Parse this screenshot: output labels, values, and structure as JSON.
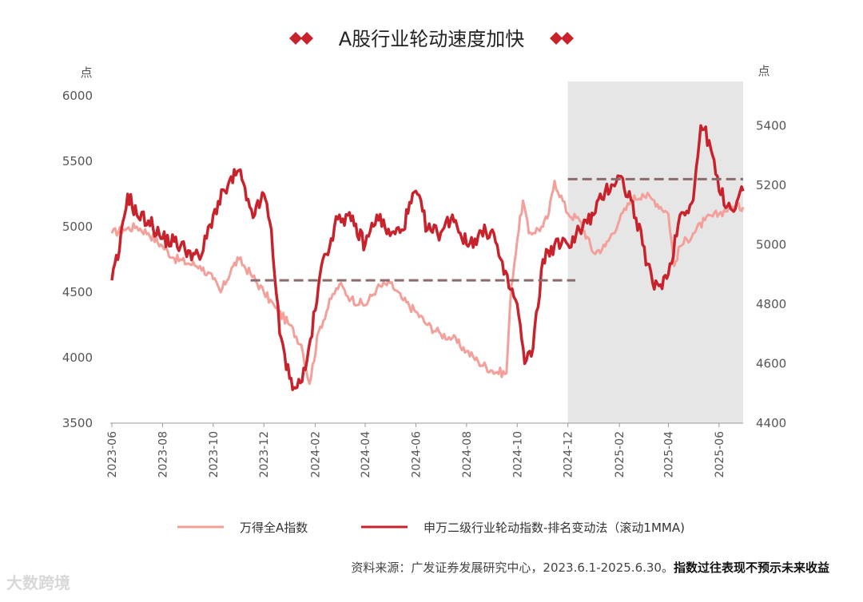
{
  "chart_data": {
    "type": "line",
    "title": "A股行业轮动速度加快",
    "left_axis": {
      "unit": "点",
      "ticks": [
        3500,
        4000,
        4500,
        5000,
        5500,
        6000
      ],
      "range": [
        3500,
        6000
      ]
    },
    "right_axis": {
      "unit": "点",
      "ticks": [
        4400,
        4600,
        4800,
        5000,
        5200,
        5400
      ],
      "range": [
        4400,
        5500
      ]
    },
    "x_ticks": [
      "2023-06",
      "2023-08",
      "2023-10",
      "2023-12",
      "2024-02",
      "2024-04",
      "2024-06",
      "2024-08",
      "2024-10",
      "2024-12",
      "2025-02",
      "2025-04",
      "2025-06"
    ],
    "x_range": [
      "2023-06-01",
      "2025-06-30"
    ],
    "highlight_period": {
      "start": "2024-12-01",
      "end": "2025-06-30"
    },
    "series": [
      {
        "name": "万得全A指数",
        "axis": "left",
        "color": "#f4a09a",
        "x": [
          "2023-06-01",
          "2023-06-15",
          "2023-07-01",
          "2023-07-15",
          "2023-08-01",
          "2023-08-15",
          "2023-09-01",
          "2023-09-15",
          "2023-10-01",
          "2023-10-10",
          "2023-10-25",
          "2023-11-01",
          "2023-11-15",
          "2023-12-01",
          "2023-12-15",
          "2024-01-01",
          "2024-01-15",
          "2024-01-25",
          "2024-02-05",
          "2024-02-20",
          "2024-03-01",
          "2024-03-15",
          "2024-04-01",
          "2024-04-15",
          "2024-05-01",
          "2024-05-15",
          "2024-06-01",
          "2024-06-15",
          "2024-07-01",
          "2024-07-15",
          "2024-08-01",
          "2024-08-15",
          "2024-09-01",
          "2024-09-18",
          "2024-09-24",
          "2024-10-01",
          "2024-10-08",
          "2024-10-15",
          "2024-11-01",
          "2024-11-08",
          "2024-11-15",
          "2024-12-01",
          "2024-12-15",
          "2025-01-01",
          "2025-01-15",
          "2025-02-01",
          "2025-02-15",
          "2025-03-01",
          "2025-03-15",
          "2025-04-01",
          "2025-04-08",
          "2025-04-15",
          "2025-05-01",
          "2025-05-15",
          "2025-06-01",
          "2025-06-15",
          "2025-06-30"
        ],
        "y": [
          4950,
          4980,
          5000,
          4950,
          4850,
          4760,
          4720,
          4700,
          4600,
          4500,
          4700,
          4750,
          4640,
          4500,
          4380,
          4250,
          4100,
          3800,
          4200,
          4450,
          4560,
          4450,
          4400,
          4530,
          4570,
          4450,
          4350,
          4250,
          4180,
          4150,
          4050,
          3970,
          3900,
          3880,
          4550,
          4900,
          5200,
          4950,
          5000,
          5100,
          5350,
          5100,
          5050,
          4800,
          4850,
          5050,
          5200,
          5250,
          5200,
          5100,
          4700,
          4850,
          4950,
          5050,
          5100,
          5150,
          5150
        ]
      },
      {
        "name": "申万二级行业轮动指数-排名变动法（滚动1MMA)",
        "axis": "right",
        "color": "#c8232c",
        "x": [
          "2023-06-01",
          "2023-06-10",
          "2023-06-20",
          "2023-07-01",
          "2023-07-15",
          "2023-08-01",
          "2023-08-15",
          "2023-09-01",
          "2023-09-15",
          "2023-10-01",
          "2023-10-15",
          "2023-11-01",
          "2023-11-10",
          "2023-11-20",
          "2023-12-01",
          "2023-12-10",
          "2023-12-20",
          "2024-01-01",
          "2024-01-10",
          "2024-01-20",
          "2024-02-01",
          "2024-02-10",
          "2024-02-20",
          "2024-03-01",
          "2024-03-15",
          "2024-04-01",
          "2024-04-15",
          "2024-05-01",
          "2024-05-15",
          "2024-06-01",
          "2024-06-15",
          "2024-07-01",
          "2024-07-15",
          "2024-08-01",
          "2024-08-15",
          "2024-09-01",
          "2024-09-15",
          "2024-10-01",
          "2024-10-10",
          "2024-10-20",
          "2024-11-01",
          "2024-11-15",
          "2024-12-01",
          "2024-12-15",
          "2025-01-01",
          "2025-01-15",
          "2025-02-01",
          "2025-02-15",
          "2025-03-01",
          "2025-03-15",
          "2025-04-01",
          "2025-04-15",
          "2025-05-01",
          "2025-05-10",
          "2025-05-20",
          "2025-06-01",
          "2025-06-15",
          "2025-06-30"
        ],
        "y": [
          4880,
          4980,
          5170,
          5100,
          5080,
          5020,
          5010,
          4980,
          4950,
          5100,
          5180,
          5250,
          5150,
          5100,
          5170,
          5050,
          4700,
          4550,
          4520,
          4580,
          4780,
          4950,
          5020,
          5100,
          5080,
          5000,
          5100,
          5030,
          5050,
          5180,
          5050,
          5040,
          5100,
          5000,
          5030,
          5050,
          4900,
          4800,
          4600,
          4650,
          4950,
          5000,
          5000,
          5050,
          5100,
          5180,
          5230,
          5150,
          5000,
          4850,
          4900,
          5100,
          5150,
          5400,
          5350,
          5180,
          5120,
          5180
        ]
      }
    ],
    "reference_lines": [
      {
        "axis": "right",
        "value": 4880,
        "from": "2023-11-15",
        "to": "2024-12-10"
      },
      {
        "axis": "right",
        "value": 5220,
        "from": "2024-12-01",
        "to": "2025-06-30"
      }
    ],
    "legend_position": "bottom"
  },
  "footer": {
    "source": "资料来源：广发证券发展研究中心，2023.6.1-2025.6.30。",
    "disclaimer": "指数过往表现不预示未来收益"
  },
  "watermark": "大数跨境"
}
